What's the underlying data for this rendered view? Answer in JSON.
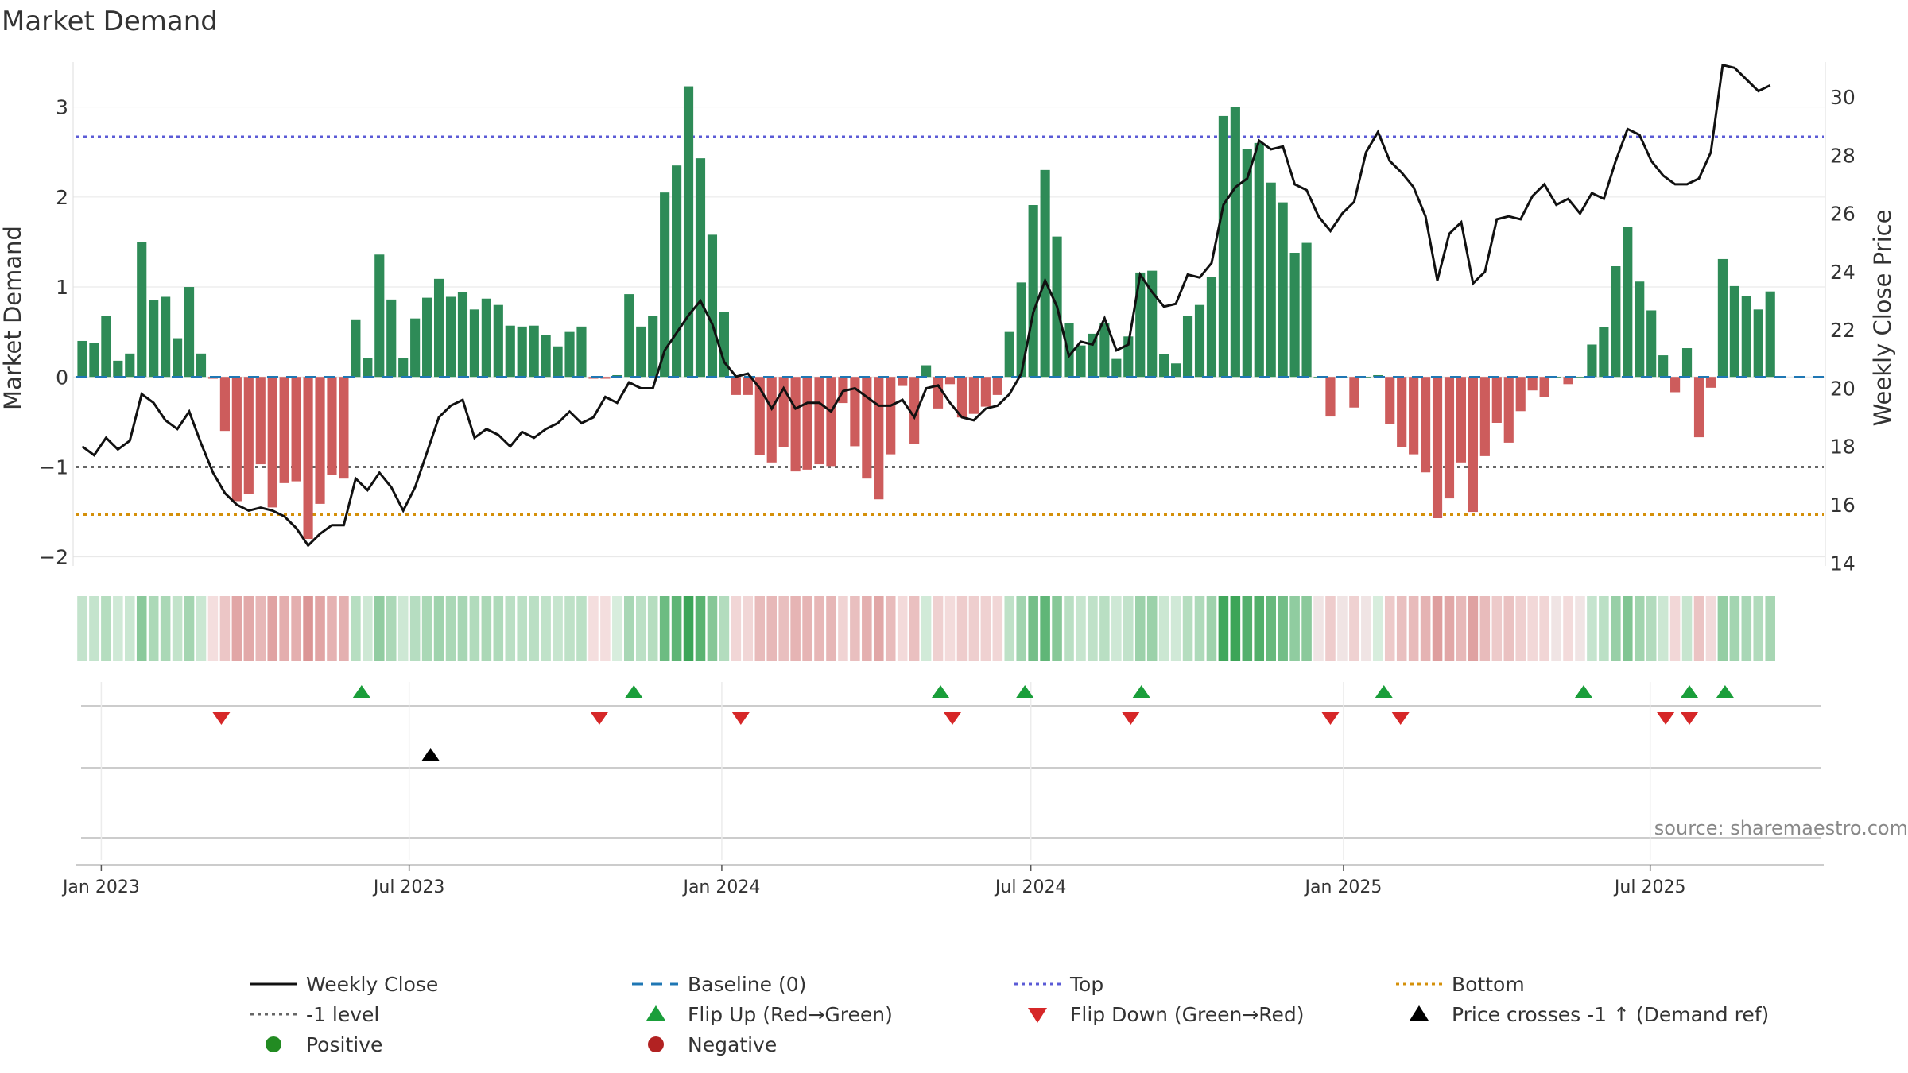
{
  "chart_data": {
    "type": "bar",
    "title": "Market Demand",
    "ylabel_left": "Market Demand",
    "ylabel_right": "Weekly Close Price",
    "ylim_left": [
      -2.1,
      3.5
    ],
    "ylim_right": [
      13.9,
      31.2
    ],
    "yticks_left": [
      -2,
      -1,
      0,
      1,
      2,
      3
    ],
    "yticks_left_labels": [
      "−2",
      "−1",
      "0",
      "1",
      "2",
      "3"
    ],
    "yticks_right": [
      14,
      16,
      18,
      20,
      22,
      24,
      26,
      28,
      30
    ],
    "x_start": "2023-01-01",
    "week_count": 147,
    "xticks": [
      {
        "label": "Jan 2023",
        "week": 1.6
      },
      {
        "label": "Jul 2023",
        "week": 27.5
      },
      {
        "label": "Jan 2024",
        "week": 53.8
      },
      {
        "label": "Jul 2024",
        "week": 79.8
      },
      {
        "label": "Jan 2025",
        "week": 106.1
      },
      {
        "label": "Jul 2025",
        "week": 131.9
      }
    ],
    "reference_lines": {
      "top": 2.67,
      "minus_one": -1.0,
      "bottom": -1.53,
      "baseline": 0
    },
    "demand": [
      0.4,
      0.38,
      0.68,
      0.18,
      0.26,
      1.5,
      0.85,
      0.89,
      0.43,
      1.0,
      0.26,
      -0.02,
      -0.6,
      -1.38,
      -1.3,
      -0.97,
      -1.45,
      -1.18,
      -1.16,
      -1.8,
      -1.41,
      -1.09,
      -1.13,
      0.64,
      0.21,
      1.36,
      0.86,
      0.21,
      0.65,
      0.88,
      1.09,
      0.89,
      0.94,
      0.75,
      0.87,
      0.8,
      0.57,
      0.56,
      0.57,
      0.47,
      0.34,
      0.5,
      0.56,
      -0.02,
      -0.02,
      0.02,
      0.92,
      0.56,
      0.68,
      2.05,
      2.35,
      3.23,
      2.43,
      1.58,
      0.72,
      -0.2,
      -0.2,
      -0.87,
      -0.95,
      -0.78,
      -1.05,
      -1.03,
      -0.97,
      -0.99,
      -0.29,
      -0.77,
      -1.13,
      -1.36,
      -0.86,
      -0.1,
      -0.74,
      0.13,
      -0.35,
      -0.08,
      -0.45,
      -0.41,
      -0.33,
      -0.2,
      0.5,
      1.05,
      1.91,
      2.3,
      1.56,
      0.6,
      0.35,
      0.48,
      0.6,
      0.2,
      0.45,
      1.16,
      1.18,
      0.25,
      0.15,
      0.68,
      0.8,
      1.11,
      2.9,
      3.0,
      2.53,
      2.6,
      2.16,
      1.94,
      1.38,
      1.49,
      0.0,
      -0.44,
      0.0,
      -0.34,
      0.0,
      0.02,
      -0.52,
      -0.78,
      -0.86,
      -1.06,
      -1.57,
      -1.35,
      -0.95,
      -1.5,
      -0.88,
      -0.51,
      -0.73,
      -0.38,
      -0.15,
      -0.22,
      0.0,
      -0.08,
      0.0,
      0.36,
      0.55,
      1.23,
      1.67,
      1.06,
      0.74,
      0.24,
      -0.17,
      0.32,
      -0.67,
      -0.12,
      1.31,
      1.01,
      0.9,
      0.75,
      0.95
    ],
    "price": [
      18.0,
      17.7,
      18.3,
      17.9,
      18.2,
      19.8,
      19.5,
      18.9,
      18.6,
      19.2,
      18.1,
      17.1,
      16.4,
      16.0,
      15.8,
      15.9,
      15.8,
      15.6,
      15.2,
      14.6,
      15.0,
      15.3,
      15.3,
      16.9,
      16.5,
      17.1,
      16.6,
      15.8,
      16.6,
      17.8,
      19.0,
      19.4,
      19.6,
      18.3,
      18.6,
      18.4,
      18.0,
      18.5,
      18.3,
      18.6,
      18.8,
      19.2,
      18.8,
      19.0,
      19.7,
      19.5,
      20.2,
      20.0,
      20.0,
      21.3,
      21.9,
      22.5,
      23.0,
      22.2,
      20.9,
      20.4,
      20.5,
      20.0,
      19.3,
      20.0,
      19.3,
      19.5,
      19.5,
      19.2,
      19.9,
      20.0,
      19.7,
      19.4,
      19.4,
      19.6,
      19.0,
      20.0,
      20.1,
      19.5,
      19.0,
      18.9,
      19.3,
      19.4,
      19.8,
      20.5,
      22.6,
      23.7,
      22.8,
      21.1,
      21.6,
      21.5,
      22.4,
      21.3,
      21.5,
      23.9,
      23.3,
      22.8,
      22.9,
      23.9,
      23.8,
      24.3,
      26.3,
      26.9,
      27.2,
      28.5,
      28.2,
      28.3,
      27.0,
      26.8,
      25.9,
      25.4,
      26.0,
      26.4,
      28.1,
      28.8,
      27.8,
      27.4,
      26.9,
      25.9,
      23.7,
      25.3,
      25.7,
      23.6,
      24.0,
      25.8,
      25.9,
      25.8,
      26.6,
      27.0,
      26.3,
      26.5,
      26.0,
      26.7,
      26.5,
      27.8,
      28.9,
      28.7,
      27.8,
      27.3,
      27.0,
      27.0,
      27.2,
      28.1,
      31.1,
      31.0,
      30.6,
      30.2,
      30.4
    ],
    "flip_up_weeks": [
      23.5,
      46.4,
      72.2,
      79.3,
      89.1,
      109.5,
      126.3,
      135.2,
      138.2
    ],
    "flip_down_weeks": [
      11.7,
      43.5,
      55.4,
      73.2,
      88.2,
      105.0,
      110.9,
      133.2,
      135.2
    ],
    "price_cross_weeks": [
      29.3
    ],
    "legend": [
      "Weekly Close",
      "Baseline (0)",
      "Top",
      "Bottom",
      "-1 level",
      "Flip Up (Red→Green)",
      "Flip Down (Green→Red)",
      "Price crosses -1 ↑ (Demand ref)",
      "Positive",
      "Negative"
    ],
    "source": "source: sharemaestro.com",
    "colors": {
      "positive": "#2e8b57",
      "negative": "#cd5c5c",
      "price": "#111111",
      "baseline": "#1f77b4",
      "top": "#5b5bd6",
      "minus_one": "#666666",
      "bottom": "#d4900a",
      "flip_up": "#1a9e3a",
      "flip_down": "#d62728",
      "legend_positive": "#228b22",
      "legend_negative": "#b22222",
      "grid": "#e6e6e6",
      "track": "#cccccc",
      "text": "#333333",
      "source": "#888888"
    }
  }
}
